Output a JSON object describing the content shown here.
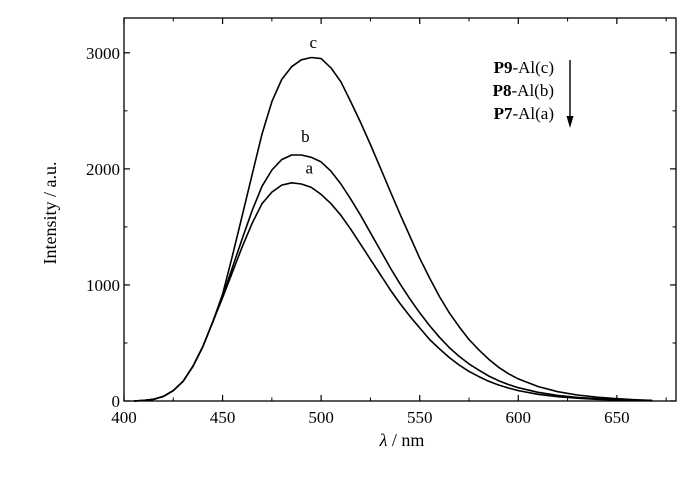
{
  "chart_data": {
    "type": "line",
    "xlabel_symbol": "λ",
    "xlabel_unit": "nm",
    "ylabel": "Intensity / a.u.",
    "xlim": [
      400,
      680
    ],
    "ylim": [
      0,
      3300
    ],
    "x_ticks": [
      400,
      450,
      500,
      550,
      600,
      650
    ],
    "x_tick_labels": [
      "400",
      "450",
      "500",
      "550",
      "600",
      "650"
    ],
    "y_ticks": [
      0,
      1000,
      2000,
      3000
    ],
    "y_tick_labels": [
      "0",
      "1000",
      "2000",
      "3000"
    ],
    "series": [
      {
        "name": "c",
        "x": [
          405,
          410,
          415,
          420,
          425,
          430,
          435,
          440,
          445,
          450,
          455,
          460,
          465,
          470,
          475,
          480,
          485,
          490,
          495,
          500,
          505,
          510,
          515,
          520,
          525,
          530,
          535,
          540,
          545,
          550,
          555,
          560,
          565,
          570,
          575,
          580,
          585,
          590,
          595,
          600,
          610,
          620,
          630,
          640,
          650,
          660,
          668
        ],
        "y": [
          0,
          5,
          15,
          40,
          90,
          170,
          300,
          470,
          680,
          920,
          1250,
          1600,
          1950,
          2300,
          2580,
          2770,
          2880,
          2940,
          2960,
          2950,
          2870,
          2750,
          2580,
          2400,
          2210,
          2010,
          1810,
          1610,
          1420,
          1230,
          1060,
          900,
          760,
          640,
          530,
          440,
          360,
          290,
          235,
          190,
          125,
          80,
          52,
          33,
          20,
          10,
          5
        ]
      },
      {
        "name": "b",
        "x": [
          405,
          410,
          415,
          420,
          425,
          430,
          435,
          440,
          445,
          450,
          455,
          460,
          465,
          470,
          475,
          480,
          485,
          490,
          495,
          500,
          505,
          510,
          515,
          520,
          525,
          530,
          535,
          540,
          545,
          550,
          555,
          560,
          565,
          570,
          575,
          580,
          585,
          590,
          595,
          600,
          610,
          620,
          630,
          640,
          650,
          660,
          668
        ],
        "y": [
          0,
          5,
          15,
          40,
          90,
          170,
          300,
          470,
          680,
          900,
          1150,
          1400,
          1640,
          1850,
          1990,
          2080,
          2120,
          2120,
          2100,
          2060,
          1980,
          1870,
          1740,
          1600,
          1450,
          1300,
          1150,
          1010,
          880,
          760,
          650,
          550,
          460,
          385,
          320,
          265,
          215,
          175,
          142,
          115,
          75,
          48,
          31,
          20,
          12,
          6,
          3
        ]
      },
      {
        "name": "a",
        "x": [
          405,
          410,
          415,
          420,
          425,
          430,
          435,
          440,
          445,
          450,
          455,
          460,
          465,
          470,
          475,
          480,
          485,
          490,
          495,
          500,
          505,
          510,
          515,
          520,
          525,
          530,
          535,
          540,
          545,
          550,
          555,
          560,
          565,
          570,
          575,
          580,
          585,
          590,
          595,
          600,
          610,
          620,
          630,
          640,
          650,
          660,
          668
        ],
        "y": [
          0,
          5,
          15,
          40,
          90,
          170,
          300,
          470,
          680,
          890,
          1110,
          1330,
          1530,
          1700,
          1800,
          1860,
          1880,
          1870,
          1840,
          1780,
          1700,
          1600,
          1480,
          1350,
          1220,
          1090,
          960,
          840,
          730,
          630,
          530,
          450,
          375,
          310,
          255,
          210,
          170,
          138,
          112,
          90,
          58,
          37,
          24,
          15,
          9,
          5,
          2
        ]
      }
    ],
    "curve_labels": [
      {
        "text": "c",
        "x": 496,
        "y": 3040
      },
      {
        "text": "b",
        "x": 492,
        "y": 2230
      },
      {
        "text": "a",
        "x": 494,
        "y": 1960
      }
    ],
    "legend": {
      "placement": "top-right",
      "entries": [
        {
          "bold": "P9",
          "rest": "-Al(c)"
        },
        {
          "bold": "P8",
          "rest": "-Al(b)"
        },
        {
          "bold": "P7",
          "rest": "-Al(a)"
        }
      ]
    },
    "grid": false
  }
}
